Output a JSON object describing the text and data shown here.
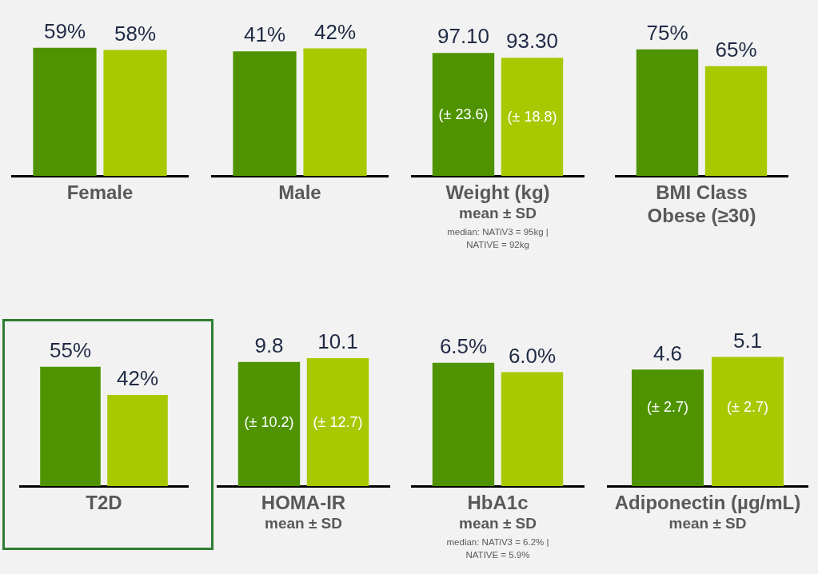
{
  "chart_data": [
    {
      "type": "bar",
      "categories": [
        "Female"
      ],
      "series": [
        {
          "color": "#4f9400",
          "values": [
            59
          ],
          "value_labels": [
            "59%"
          ]
        },
        {
          "color": "#a8c800",
          "values": [
            58
          ],
          "value_labels": [
            "58%"
          ]
        }
      ]
    },
    {
      "type": "bar",
      "categories": [
        "Male"
      ],
      "series": [
        {
          "color": "#4f9400",
          "values": [
            41
          ],
          "value_labels": [
            "41%"
          ]
        },
        {
          "color": "#a8c800",
          "values": [
            42
          ],
          "value_labels": [
            "42%"
          ]
        }
      ]
    },
    {
      "type": "bar",
      "categories": [
        "Weight (kg)"
      ],
      "xlabel": "mean ± SD",
      "series": [
        {
          "color": "#4f9400",
          "values": [
            97.1
          ],
          "value_labels": [
            "97.10"
          ]
        },
        {
          "color": "#a8c800",
          "values": [
            93.3
          ],
          "value_labels": [
            "93.30"
          ]
        }
      ],
      "annotations": [
        {
          "text": "(± 23.6)",
          "x": "Weight (kg)",
          "y": 48
        },
        {
          "text": "(± 18.8)",
          "x": "Weight (kg)",
          "y": 46
        },
        "median: NATiV3 = 95kg |\nNATIVE = 92kg"
      ]
    },
    {
      "type": "bar",
      "categories": [
        "BMI Class\nObese (≥30)"
      ],
      "series": [
        {
          "color": "#4f9400",
          "values": [
            75
          ],
          "value_labels": [
            "75%"
          ]
        },
        {
          "color": "#a8c800",
          "values": [
            65
          ],
          "value_labels": [
            "65%"
          ]
        }
      ]
    },
    {
      "type": "bar",
      "categories": [
        "T2D"
      ],
      "series": [
        {
          "color": "#4f9400",
          "values": [
            55
          ],
          "value_labels": [
            "55%"
          ]
        },
        {
          "color": "#a8c800",
          "values": [
            42
          ],
          "value_labels": [
            "42%"
          ]
        }
      ]
    },
    {
      "type": "bar",
      "categories": [
        "HOMA-IR"
      ],
      "xlabel": "mean ± SD",
      "series": [
        {
          "color": "#4f9400",
          "values": [
            9.8
          ],
          "value_labels": [
            "9.8"
          ]
        },
        {
          "color": "#a8c800",
          "values": [
            10.1
          ],
          "value_labels": [
            "10.1"
          ]
        }
      ],
      "annotations": [
        {
          "text": "(± 10.2)",
          "x": "HOMA-IR",
          "y": 5
        },
        {
          "text": "(± 12.7)",
          "x": "HOMA-IR",
          "y": 5
        }
      ]
    },
    {
      "type": "bar",
      "categories": [
        "HbA1c"
      ],
      "xlabel": "mean ± SD",
      "series": [
        {
          "color": "#4f9400",
          "values": [
            6.5
          ],
          "value_labels": [
            "6.5%"
          ]
        },
        {
          "color": "#a8c800",
          "values": [
            6.0
          ],
          "value_labels": [
            "6.0%"
          ]
        }
      ],
      "annotations": [
        "median: NATiV3 = 6.2% |\nNATIVE = 5.9%"
      ]
    },
    {
      "type": "bar",
      "categories": [
        "Adiponectin (µg/mL)"
      ],
      "xlabel": "mean ± SD",
      "series": [
        {
          "color": "#4f9400",
          "values": [
            4.6
          ],
          "value_labels": [
            "4.6"
          ]
        },
        {
          "color": "#a8c800",
          "values": [
            5.1
          ],
          "value_labels": [
            "5.1"
          ]
        }
      ],
      "annotations": [
        {
          "text": "(± 2.7)",
          "x": "Adiponectin (µg/mL)",
          "y": 3.1
        },
        {
          "text": "(± 2.7)",
          "x": "Adiponectin (µg/mL)",
          "y": 3.1
        }
      ]
    }
  ]
}
